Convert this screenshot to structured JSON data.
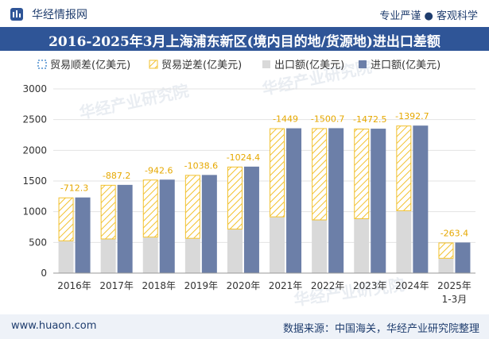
{
  "header": {
    "site_name": "华经情报网",
    "slogan": "专业严谨 ● 客观科学",
    "title": "2016-2025年3月上海浦东新区(境内目的地/货源地)进出口差额"
  },
  "footer": {
    "url": "www.huaon.com",
    "source": "数据来源：中国海关，华经产业研究院整理"
  },
  "watermark": "华经产业研究院",
  "colors": {
    "surplus": "#4f8fcf",
    "deficit": "#f2c12e",
    "export": "#d9d9d9",
    "import": "#6c7fa8",
    "label": "#e6a800",
    "title_bg": "#2f5597"
  },
  "chart_data": {
    "type": "bar",
    "title": "2016-2025年3月上海浦东新区(境内目的地/货源地)进出口差额",
    "categories": [
      "2016年",
      "2017年",
      "2018年",
      "2019年",
      "2020年",
      "2021年",
      "2022年",
      "2023年",
      "2024年",
      "2025年1-3月"
    ],
    "series": [
      {
        "name": "贸易顺差(亿美元)",
        "values": [
          0,
          0,
          0,
          0,
          0,
          0,
          0,
          0,
          0,
          0
        ]
      },
      {
        "name": "贸易逆差(亿美元)",
        "values": [
          -712.3,
          -887.2,
          -942.6,
          -1038.6,
          -1024.4,
          -1449,
          -1500.7,
          -1472.5,
          -1392.7,
          -263.4
        ]
      },
      {
        "name": "出口额(亿美元)",
        "values": [
          520,
          550,
          580,
          560,
          710,
          910,
          860,
          880,
          1010,
          235
        ]
      },
      {
        "name": "进口额(亿美元)",
        "values": [
          1232.3,
          1437.2,
          1522.6,
          1598.6,
          1734.4,
          2359,
          2360.7,
          2352.5,
          2402.7,
          498.4
        ]
      }
    ],
    "data_labels": [
      "-712.3",
      "-887.2",
      "-942.6",
      "-1038.6",
      "-1024.4",
      "-1449",
      "-1500.7",
      "-1472.5",
      "-1392.7",
      "-263.4"
    ],
    "y_ticks": [
      "0",
      "500",
      "1000",
      "1500",
      "2000",
      "2500",
      "3000"
    ],
    "ylim": [
      0,
      3000
    ],
    "legend_position": "top",
    "grid": true
  }
}
